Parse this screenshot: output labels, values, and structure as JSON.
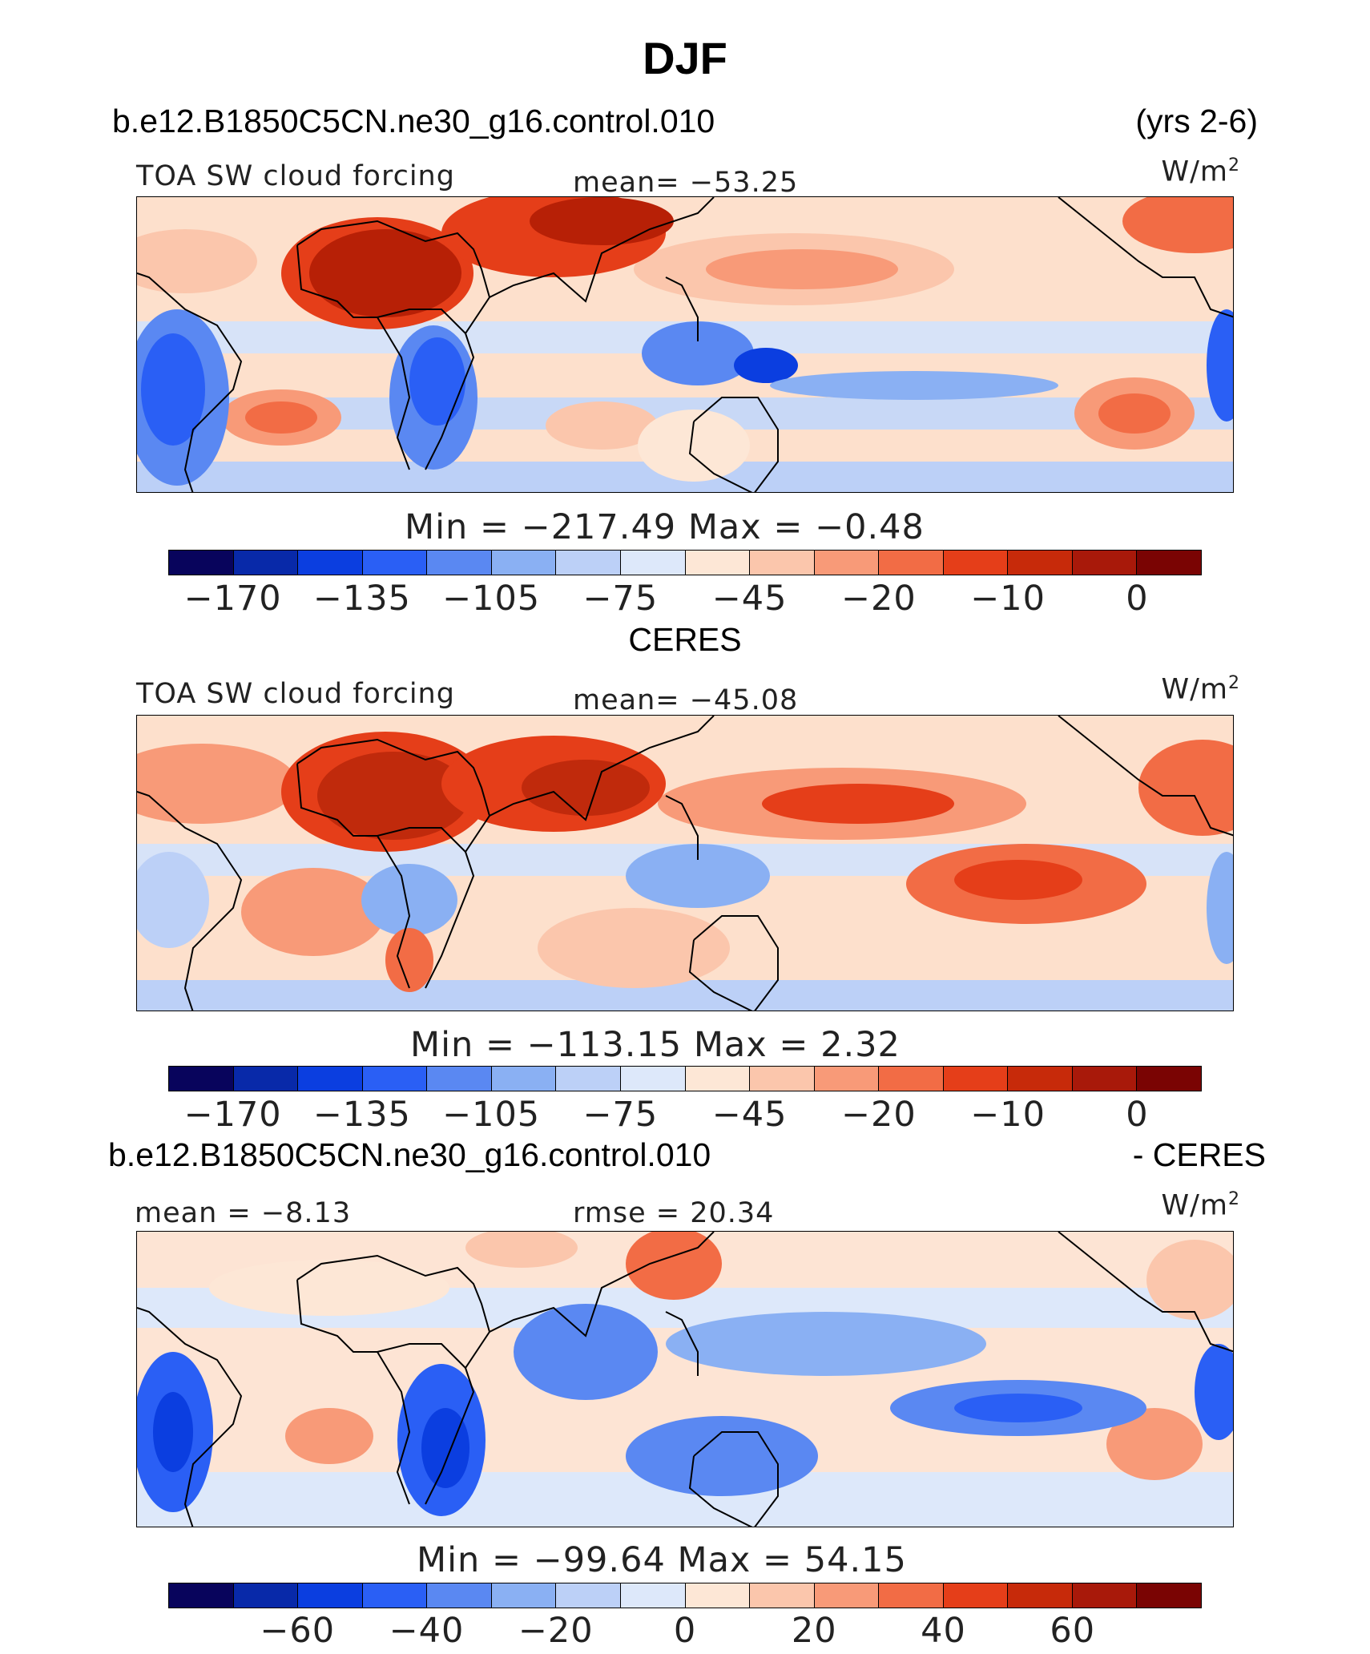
{
  "title": "DJF",
  "case": {
    "name": "b.e12.B1850C5CN.ne30_g16.control.010",
    "years": "(yrs 2-6)"
  },
  "panels": [
    {
      "id": "model",
      "variable": "TOA SW cloud forcing",
      "stat_left": "",
      "stat_center": "mean=  −53.25",
      "units": "W/m",
      "units_sup": "2",
      "minmax": "Min  =  −217.49  Max  =   −0.48",
      "colorbar_ticks": [
        "−170",
        "−135",
        "−105",
        "−75",
        "−45",
        "−20",
        "−10",
        "0"
      ],
      "palette": "full",
      "tints": {
        "land_red": "#b72006",
        "ocean_base": "#fde0cc"
      }
    },
    {
      "id": "obs",
      "heading": "CERES",
      "variable": "TOA SW cloud forcing",
      "stat_left": "",
      "stat_center": "mean=  −45.08",
      "units": "W/m",
      "units_sup": "2",
      "minmax": "Min  =  −113.15  Max  =     2.32",
      "colorbar_ticks": [
        "−170",
        "−135",
        "−105",
        "−75",
        "−45",
        "−20",
        "−10",
        "0"
      ],
      "palette": "full",
      "tints": {
        "land_red": "#c02a0c",
        "ocean_base": "#fde0cc"
      }
    },
    {
      "id": "diff",
      "heading_left": "b.e12.B1850C5CN.ne30_g16.control.010",
      "heading_right": "- CERES",
      "variable": "",
      "stat_left": "mean =   −8.13",
      "stat_center": "rmse  =   20.34",
      "units": "W/m",
      "units_sup": "2",
      "minmax": "Min  =  −99.64  Max  =    54.15",
      "colorbar_ticks": [
        "−60",
        "−40",
        "−20",
        "0",
        "20",
        "40",
        "60"
      ],
      "palette": "diff",
      "tints": {
        "land_red": "#f7aa8a",
        "ocean_base": "#fde4d4"
      }
    }
  ],
  "colorbar_colors": [
    "#08045c",
    "#0829a9",
    "#0b3ee0",
    "#2a5ff5",
    "#5a88f2",
    "#8ab0f3",
    "#bcd0f7",
    "#dde8fa",
    "#fde7d6",
    "#fbc6ac",
    "#f89a78",
    "#f26c45",
    "#e53e19",
    "#c72a0a",
    "#a8190a",
    "#7a0403"
  ]
}
